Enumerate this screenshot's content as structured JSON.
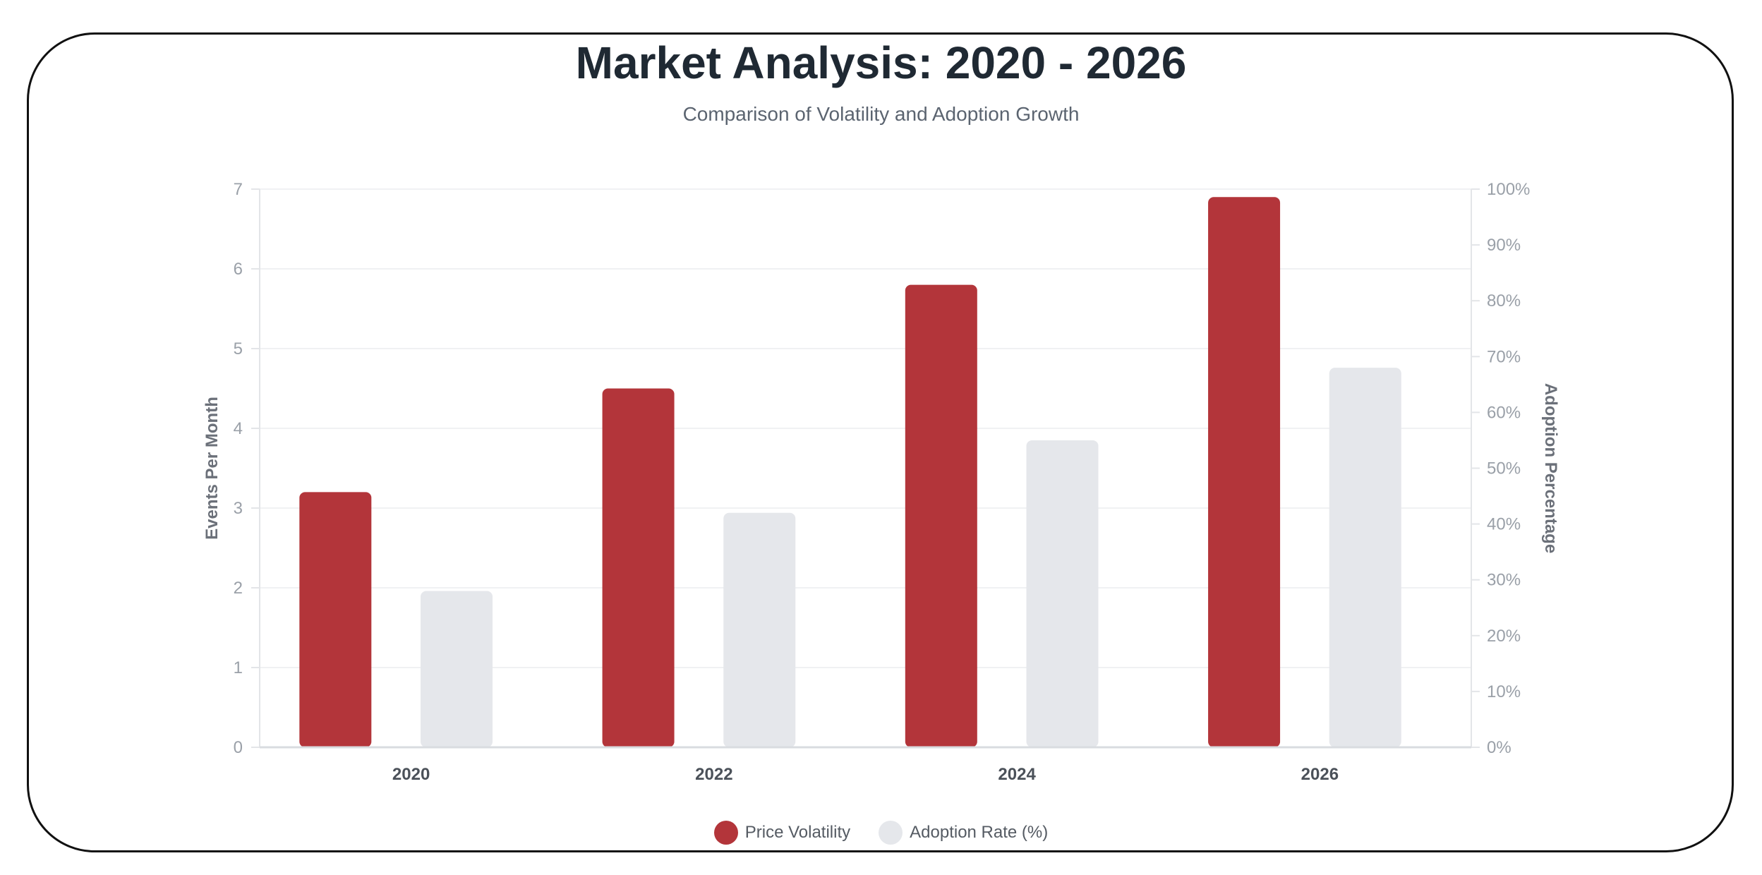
{
  "chart_data": {
    "type": "bar",
    "title": "Market Analysis: 2020 - 2026",
    "subtitle": "Comparison of Volatility and Adoption Growth",
    "categories": [
      "2020",
      "2022",
      "2024",
      "2026"
    ],
    "series": [
      {
        "name": "Price Volatility",
        "axis": "left",
        "values": [
          3.2,
          4.5,
          5.8,
          6.9
        ],
        "color": "#b3353a"
      },
      {
        "name": "Adoption Rate (%)",
        "axis": "right",
        "values": [
          28,
          42,
          55,
          68
        ],
        "color": "#e5e7eb"
      }
    ],
    "y_left": {
      "label": "Events Per Month",
      "range": [
        0,
        7
      ],
      "ticks": [
        "0",
        "1",
        "2",
        "3",
        "4",
        "5",
        "6",
        "7"
      ]
    },
    "y_right": {
      "label": "Adoption Percentage",
      "range": [
        0,
        100
      ],
      "ticks": [
        "0%",
        "10%",
        "20%",
        "30%",
        "40%",
        "50%",
        "60%",
        "70%",
        "80%",
        "90%",
        "100%"
      ]
    },
    "grid": true,
    "legend_position": "bottom-center"
  }
}
